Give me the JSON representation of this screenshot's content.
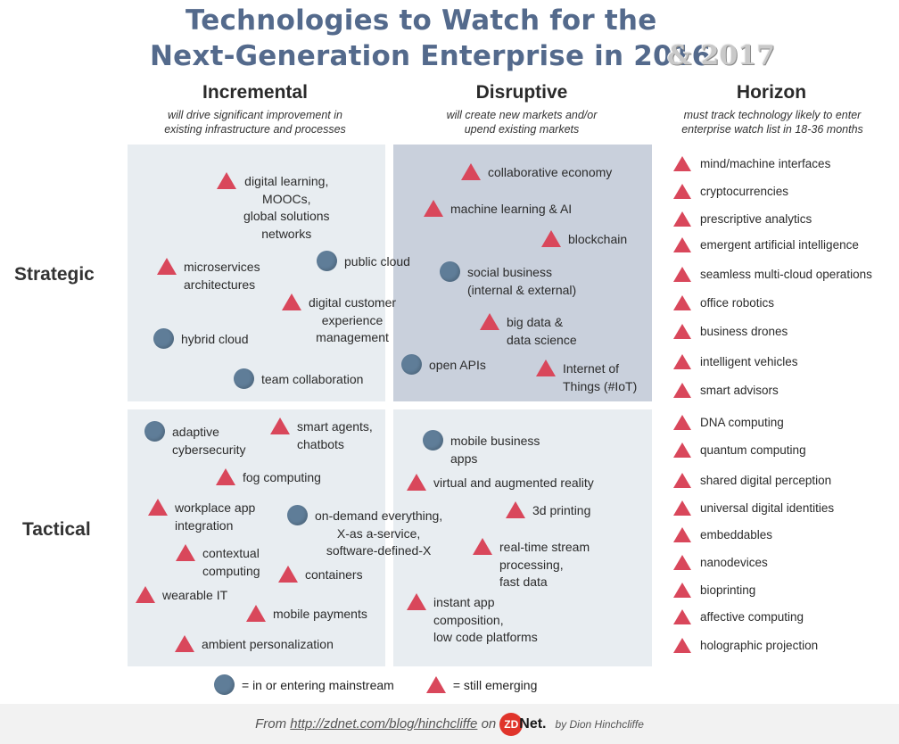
{
  "title": {
    "line1": "Technologies to Watch for the",
    "line2": "Next-Generation Enterprise in 2016",
    "suffix": "& 2017"
  },
  "columns": {
    "incremental": {
      "title": "Incremental",
      "sub1": "will drive significant improvement in",
      "sub2": "existing infrastructure and processes"
    },
    "disruptive": {
      "title": "Disruptive",
      "sub1": "will create new markets and/or",
      "sub2": "upend existing markets"
    },
    "horizon": {
      "title": "Horizon",
      "sub1": "must track technology likely to enter",
      "sub2": "enterprise watch list in 18-36 months"
    }
  },
  "rows": {
    "strategic": "Strategic",
    "tactical": "Tactical"
  },
  "colors": {
    "emerging": "#d9475b",
    "mainstream": "#5f7d98",
    "light_panel": "#e8edf1",
    "dark_panel": "#c9d0dc"
  },
  "strategic_incremental": [
    {
      "marker": "triangle",
      "lines": [
        "digital learning,",
        "MOOCs,",
        "global solutions",
        "networks"
      ]
    },
    {
      "marker": "circle",
      "lines": [
        "public cloud"
      ]
    },
    {
      "marker": "triangle",
      "lines": [
        "microservices",
        "architectures"
      ]
    },
    {
      "marker": "triangle",
      "lines": [
        "digital customer",
        "experience",
        "management"
      ]
    },
    {
      "marker": "circle",
      "lines": [
        "hybrid cloud"
      ]
    },
    {
      "marker": "circle",
      "lines": [
        "team collaboration"
      ]
    }
  ],
  "strategic_disruptive": [
    {
      "marker": "triangle",
      "lines": [
        "collaborative economy"
      ]
    },
    {
      "marker": "triangle",
      "lines": [
        "machine learning & AI"
      ]
    },
    {
      "marker": "triangle",
      "lines": [
        "blockchain"
      ]
    },
    {
      "marker": "circle",
      "lines": [
        "social business",
        "(internal & external)"
      ]
    },
    {
      "marker": "triangle",
      "lines": [
        "big data &",
        "data science"
      ]
    },
    {
      "marker": "circle",
      "lines": [
        "open APIs"
      ]
    },
    {
      "marker": "triangle",
      "lines": [
        "Internet of",
        "Things (#IoT)"
      ]
    }
  ],
  "tactical_incremental": [
    {
      "marker": "circle",
      "lines": [
        "adaptive",
        "cybersecurity"
      ]
    },
    {
      "marker": "triangle",
      "lines": [
        "smart agents,",
        "chatbots"
      ]
    },
    {
      "marker": "triangle",
      "lines": [
        "fog computing"
      ]
    },
    {
      "marker": "triangle",
      "lines": [
        "workplace app",
        "integration"
      ]
    },
    {
      "marker": "circle",
      "lines": [
        "on-demand everything,",
        "X-as a-service,",
        "software-defined-X"
      ]
    },
    {
      "marker": "triangle",
      "lines": [
        "contextual",
        "computing"
      ]
    },
    {
      "marker": "triangle",
      "lines": [
        "containers"
      ]
    },
    {
      "marker": "triangle",
      "lines": [
        "wearable IT"
      ]
    },
    {
      "marker": "triangle",
      "lines": [
        "mobile payments"
      ]
    },
    {
      "marker": "triangle",
      "lines": [
        "ambient personalization"
      ]
    }
  ],
  "tactical_disruptive": [
    {
      "marker": "circle",
      "lines": [
        "mobile business",
        "apps"
      ]
    },
    {
      "marker": "triangle",
      "lines": [
        "virtual and augmented reality"
      ]
    },
    {
      "marker": "triangle",
      "lines": [
        "3d printing"
      ]
    },
    {
      "marker": "triangle",
      "lines": [
        "real-time stream",
        "processing,",
        "fast data"
      ]
    },
    {
      "marker": "triangle",
      "lines": [
        "instant app",
        "composition,",
        "low code platforms"
      ]
    }
  ],
  "horizon_items": [
    "mind/machine interfaces",
    "cryptocurrencies",
    "prescriptive analytics",
    "emergent artificial intelligence",
    "seamless multi-cloud operations",
    "office robotics",
    "business drones",
    "intelligent vehicles",
    "smart advisors",
    "DNA computing",
    "quantum computing",
    "shared digital perception",
    "universal digital identities",
    "embeddables",
    "nanodevices",
    "bioprinting",
    "affective computing",
    "holographic projection"
  ],
  "legend": {
    "mainstream": "= in or entering mainstream",
    "emerging": "= still emerging"
  },
  "footer": {
    "from": "From",
    "link": "http://zdnet.com/blog/hinchcliffe",
    "on": "on",
    "logo_zd": "ZD",
    "logo_net": "Net.",
    "by": "by Dion Hinchcliffe"
  }
}
